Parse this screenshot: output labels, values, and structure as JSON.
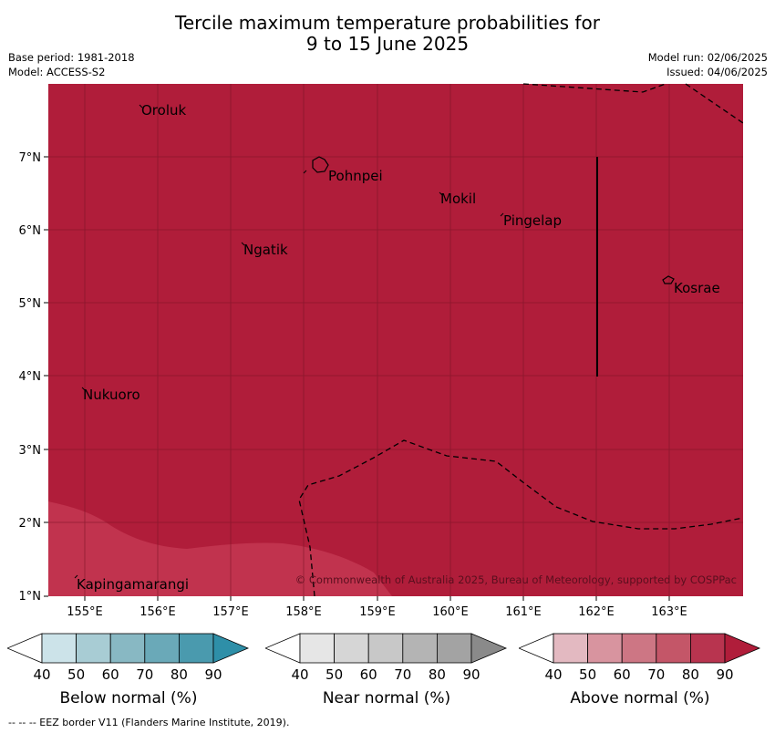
{
  "title": {
    "line1": "Tercile maximum temperature probabilities for",
    "line2": "9 to 15 June 2025"
  },
  "info_left": {
    "base_period": "Base period: 1981-2018",
    "model": "Model: ACCESS-S2"
  },
  "info_right": {
    "model_run": "Model run: 02/06/2025",
    "issued": "Issued: 04/06/2025"
  },
  "map": {
    "lon_ticks": [
      "155°E",
      "156°E",
      "157°E",
      "158°E",
      "159°E",
      "160°E",
      "161°E",
      "162°E",
      "163°E"
    ],
    "lat_ticks": [
      "7°N",
      "6°N",
      "5°N",
      "4°N",
      "3°N",
      "2°N",
      "1°N"
    ],
    "places": [
      "Oroluk",
      "Pohnpei",
      "Mokil",
      "Pingelap",
      "Ngatik",
      "Kosrae",
      "Nukuoro",
      "Kapingamarangi"
    ],
    "copyright": "© Commonwealth of Australia 2025, Bureau of Meteorology, supported by COSPPac",
    "colors": {
      "above_90": "#b01d3a",
      "above_80": "#c1334e",
      "grid": "#7a1426"
    }
  },
  "legends": [
    {
      "label": "Below normal (%)",
      "ticks": [
        "40",
        "50",
        "60",
        "70",
        "80",
        "90"
      ],
      "colors": [
        "#ffffff",
        "#cce3e9",
        "#a8ccd4",
        "#88b8c3",
        "#6aa9b8",
        "#4a9aae",
        "#2e8fa8"
      ]
    },
    {
      "label": "Near normal (%)",
      "ticks": [
        "40",
        "50",
        "60",
        "70",
        "80",
        "90"
      ],
      "colors": [
        "#ffffff",
        "#e6e6e6",
        "#d6d6d6",
        "#c8c8c8",
        "#b4b4b4",
        "#a3a3a3",
        "#8a8a8a"
      ]
    },
    {
      "label": "Above normal (%)",
      "ticks": [
        "40",
        "50",
        "60",
        "70",
        "80",
        "90"
      ],
      "colors": [
        "#ffffff",
        "#e3b9c1",
        "#d8949f",
        "#cd7684",
        "#c45668",
        "#b8344f",
        "#b01d3a"
      ]
    }
  ],
  "footer": "--  --  -- EEZ border V11 (Flanders Marine Institute, 2019)."
}
